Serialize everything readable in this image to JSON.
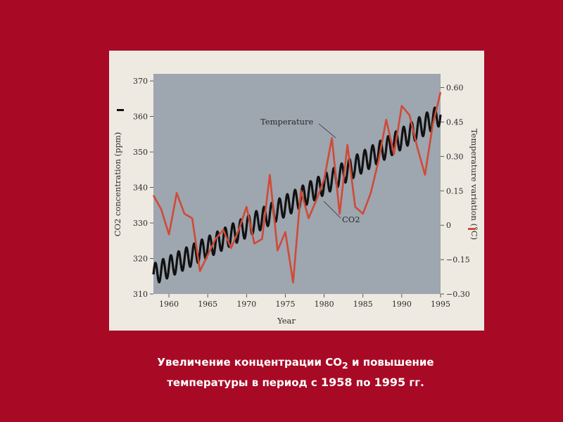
{
  "chart_data": {
    "type": "line",
    "xlabel": "Year",
    "ylabel_left": "CO2 concentration (ppm)",
    "ylabel_right": "Temperature variation (°C)",
    "xlim": [
      1958,
      1995
    ],
    "ylim_left": [
      310,
      372
    ],
    "ylim_right": [
      -0.3,
      0.66
    ],
    "x_ticks": [
      "1960",
      "1965",
      "1970",
      "1975",
      "1980",
      "1985",
      "1990",
      "1995"
    ],
    "y_left_ticks": [
      "310",
      "320",
      "330",
      "340",
      "350",
      "360",
      "370"
    ],
    "y_right_ticks": [
      "−0.30",
      "−0.15",
      "0",
      "0.15",
      "0.30",
      "0.45",
      "0.60"
    ],
    "grid": false,
    "colors": {
      "plot_bg": "#9ea6b0",
      "co2": "#111111",
      "temperature": "#d04a36"
    },
    "annotations": {
      "temperature": "Temperature",
      "co2": "CO2"
    },
    "series": [
      {
        "name": "Temperature",
        "axis": "right",
        "x": [
          1958,
          1959,
          1960,
          1961,
          1962,
          1963,
          1964,
          1965,
          1966,
          1967,
          1968,
          1969,
          1970,
          1971,
          1972,
          1973,
          1974,
          1975,
          1976,
          1977,
          1978,
          1979,
          1980,
          1981,
          1982,
          1983,
          1984,
          1985,
          1986,
          1987,
          1988,
          1989,
          1990,
          1991,
          1992,
          1993,
          1994,
          1995
        ],
        "values": [
          0.13,
          0.07,
          -0.04,
          0.14,
          0.05,
          0.03,
          -0.2,
          -0.13,
          -0.06,
          -0.02,
          -0.1,
          -0.02,
          0.08,
          -0.08,
          -0.06,
          0.22,
          -0.11,
          -0.03,
          -0.25,
          0.15,
          0.03,
          0.11,
          0.2,
          0.38,
          0.05,
          0.35,
          0.08,
          0.05,
          0.14,
          0.28,
          0.46,
          0.31,
          0.52,
          0.48,
          0.34,
          0.22,
          0.44,
          0.58
        ]
      },
      {
        "name": "CO2",
        "axis": "left",
        "trend_start": [
          1958,
          315.5
        ],
        "trend_end": [
          1995,
          360.5
        ],
        "seasonal_amplitude": 3
      }
    ]
  },
  "caption": {
    "part1": "Увеличение концентрации СО",
    "sub": "2",
    "part2": " и повышение",
    "part3": "температуры  в период с ",
    "year1": "1958",
    "part4": " по ",
    "year2": "1995",
    "part5": " гг."
  }
}
